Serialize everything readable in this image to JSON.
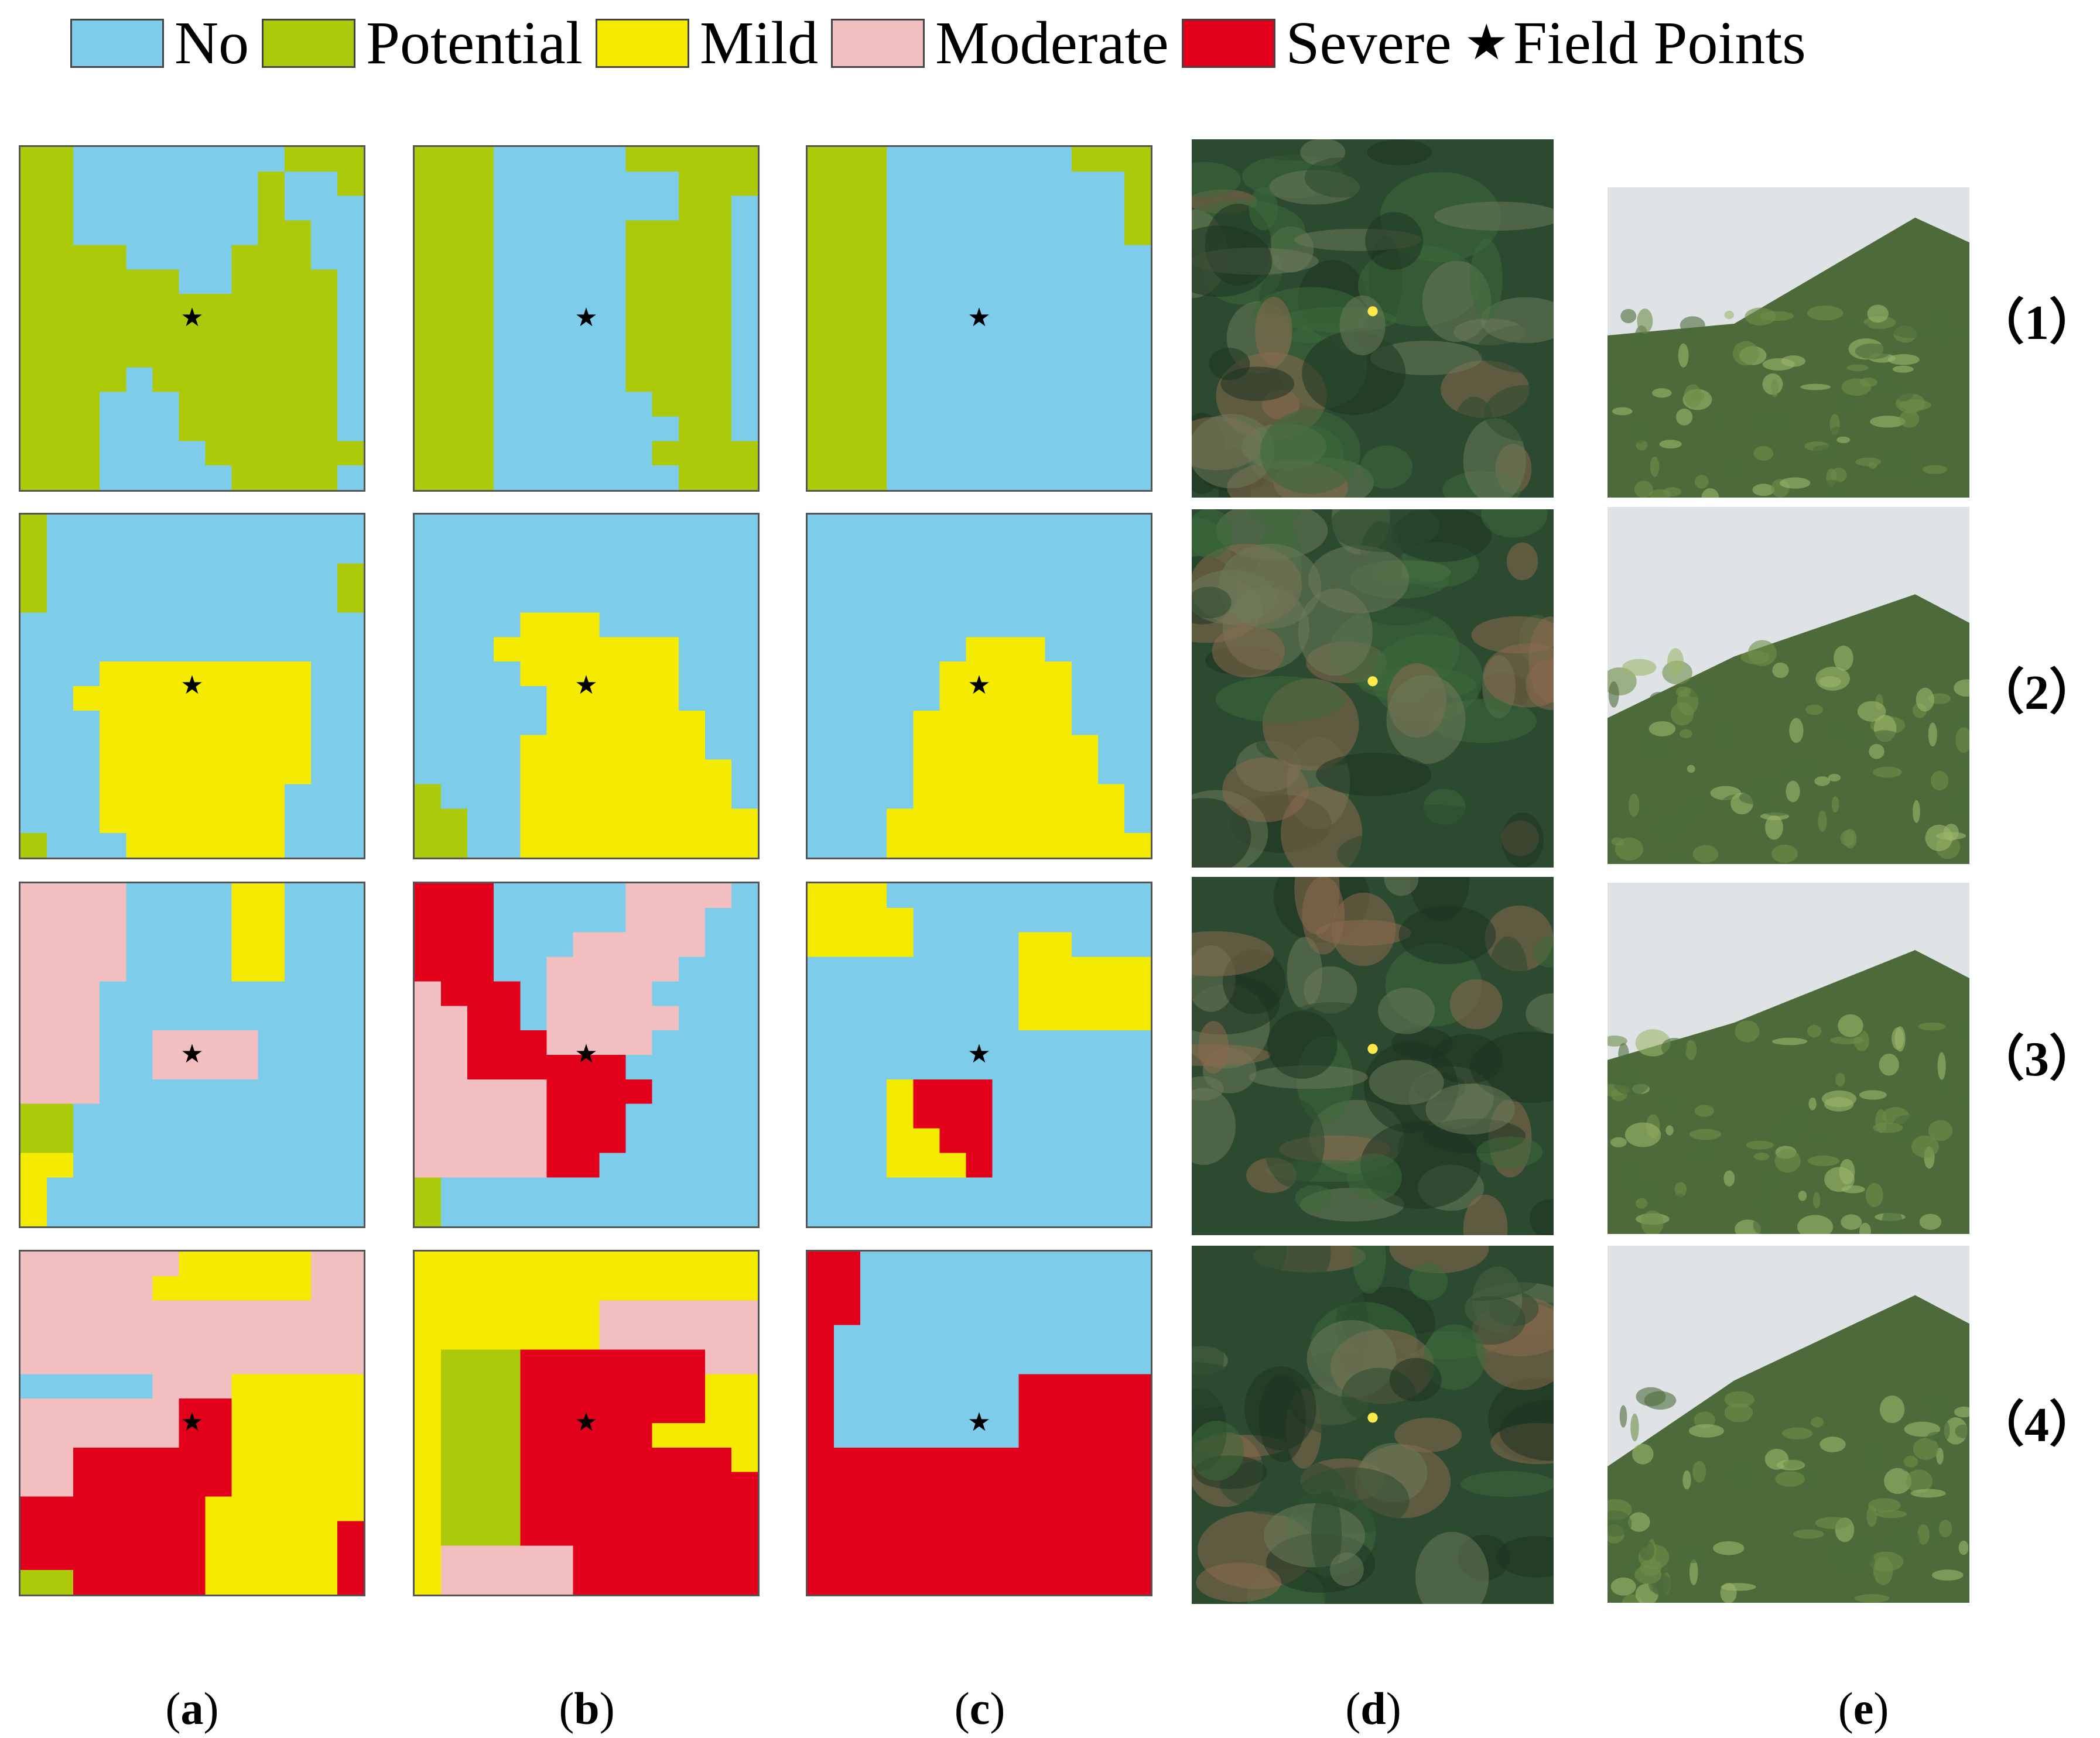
{
  "legend": {
    "items": [
      {
        "key": "no",
        "label": "No",
        "color": "#7dcdea"
      },
      {
        "key": "potential",
        "label": "Potential",
        "color": "#acc90a"
      },
      {
        "key": "mild",
        "label": "Mild",
        "color": "#f5eb00"
      },
      {
        "key": "moderate",
        "label": "Moderate",
        "color": "#f3bec0"
      },
      {
        "key": "severe",
        "label": "Severe",
        "color": "#e2001a"
      }
    ],
    "field_points": {
      "symbol": "★",
      "label": "Field Points"
    }
  },
  "map_legend_codes": {
    "0": "No",
    "1": "Potential",
    "2": "Mild",
    "3": "Moderate",
    "4": "Severe"
  },
  "maps": [
    [
      [
        "1100000000111",
        "1100000001001",
        "1100000001000",
        "1100000001100",
        "1111000011100",
        "1111110011110",
        "1111111111110",
        "1111111111110",
        "1111111111110",
        "1111011111110",
        "1110001111110",
        "1110001111110",
        "1110000111111",
        "1110000011110"
      ],
      [
        "1110000011111",
        "1110000000111",
        "1110000000110",
        "1110000011110",
        "1110000011110",
        "1110000011110",
        "1110000011110",
        "1110000011110",
        "1110000011110",
        "1110000011110",
        "1110000001110",
        "1110000000110",
        "1110000001111",
        "1110000000111"
      ],
      [
        "1110000000111",
        "1110000000001",
        "1110000000001",
        "1110000000001",
        "1110000000000",
        "1110000000000",
        "1110000000000",
        "1110000000000",
        "1110000000000",
        "1110000000000",
        "1110000000000",
        "1110000000000",
        "1110000000000",
        "1110000000000"
      ]
    ],
    [
      [
        "1000000000000",
        "1000000000000",
        "1000000000001",
        "1000000000001",
        "0000000000000",
        "0000000000000",
        "0002222222200",
        "0022222222200",
        "0002222222200",
        "0002222222200",
        "0002222222200",
        "0002222222000",
        "0002222222000",
        "1000222222000"
      ],
      [
        "0000000000000",
        "0000000000000",
        "0000000000000",
        "0000000000000",
        "0000222000000",
        "0002222222000",
        "0000222222000",
        "0000022222000",
        "0000022222200",
        "0000222222200",
        "0000222222220",
        "1000222222220",
        "1100222222222",
        "1100222222222"
      ],
      [
        "0000000000000",
        "0000000000000",
        "0000000000000",
        "0000000000000",
        "0000000000000",
        "0000002220000",
        "0000022222000",
        "0000022222000",
        "0000222222000",
        "0000222222200",
        "0000222222200",
        "0000222222220",
        "0002222222220",
        "0002222222222"
      ]
    ],
    [
      [
        "3333000022000",
        "3333000022000",
        "3333000022000",
        "3333000022000",
        "3330000000000",
        "3330000000000",
        "3330033330000",
        "3330033330000",
        "3330000000000",
        "1100000000000",
        "1100000000000",
        "2200000000000",
        "2000000000000",
        "2000000000000"
      ],
      [
        "4440000033330",
        "4440000033300",
        "4440003333300",
        "4440033333000",
        "3444033330000",
        "3344033333000",
        "3344433330000",
        "3344444400000",
        "3333344440000",
        "3333344400000",
        "3333344400000",
        "3333344000000",
        "1000000000000",
        "1000000000000"
      ],
      [
        "2220000000000",
        "2222000000000",
        "2222000022000",
        "0000000022222",
        "0000000022222",
        "0000000022222",
        "0000000000000",
        "0000000000000",
        "0002444000000",
        "0002444000000",
        "0002244000000",
        "0002224000000",
        "0000000000000",
        "0000000000000"
      ]
    ],
    [
      [
        "3333332222233",
        "3333322222233",
        "3333333333333",
        "3333333333333",
        "3333333333333",
        "0000033322222",
        "3333334422222",
        "3333334422222",
        "3344444422222",
        "3344444422222",
        "4444444222222",
        "4444444222224",
        "4444444222224",
        "1144444222224"
      ],
      [
        "2222222222222",
        "2222222222222",
        "2222222333333",
        "2222222333333",
        "2111444444433",
        "2111444444422",
        "2111444444422",
        "2111444442222",
        "2111444444442",
        "2111444444444",
        "2111444444444",
        "2111444444444",
        "2333334444444",
        "2333334444444"
      ],
      [
        "4400000000000",
        "4400000000000",
        "4400000000000",
        "4000000000000",
        "4000000000000",
        "4000000044444",
        "4000000044444",
        "4000000044444",
        "4444444444444",
        "4444444444444",
        "4444444444444",
        "4444444444444",
        "4444444444444",
        "4444444444444"
      ]
    ]
  ],
  "row_labels": [
    "（1）",
    "（2）",
    "（3）",
    "（4）"
  ],
  "column_labels": [
    {
      "letter": "a",
      "text": "(a)"
    },
    {
      "letter": "b",
      "text": "(b)"
    },
    {
      "letter": "c",
      "text": "(c)"
    },
    {
      "letter": "d",
      "text": "(d)"
    },
    {
      "letter": "e",
      "text": "(e)"
    }
  ],
  "photo_palette": {
    "satellite": [
      "#2b4a2f",
      "#3c6a3b",
      "#1d3320",
      "#6b7a5a",
      "#8a6a4f"
    ],
    "field": [
      "#4d6b3a",
      "#6f8d48",
      "#9db86a",
      "#dfe3e6"
    ]
  }
}
